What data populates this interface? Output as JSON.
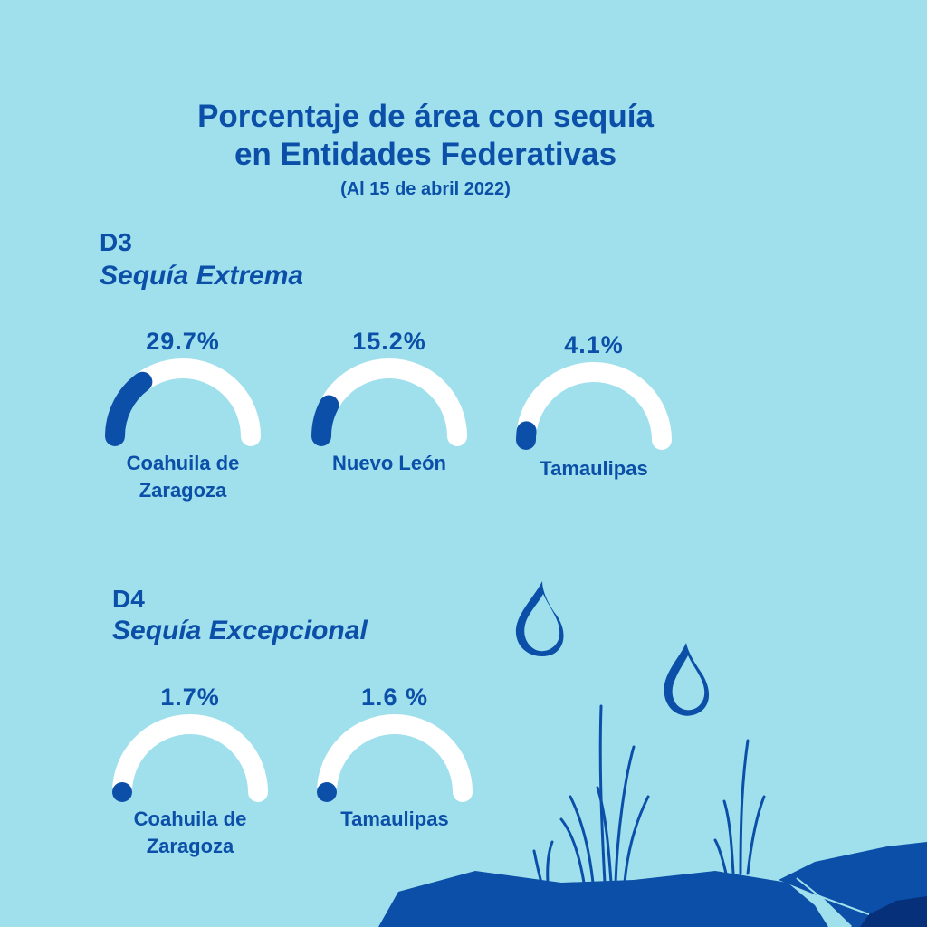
{
  "title_line1": "Porcentaje de área con sequía",
  "title_line2": "en Entidades Federativas",
  "subtitle": "(Al 15 de abril 2022)",
  "colors": {
    "background": "#9fe0ec",
    "accent": "#0b4fa8",
    "track": "#ffffff"
  },
  "chart_data": [
    {
      "type": "gauge",
      "section_code": "D3",
      "section_name": "Sequía Extrema",
      "range": [
        0,
        100
      ],
      "series": [
        {
          "label_line1": "Coahuila de",
          "label_line2": "Zaragoza",
          "value": 29.7,
          "value_text": "29.7%"
        },
        {
          "label_line1": "Nuevo León",
          "label_line2": "",
          "value": 15.2,
          "value_text": "15.2%"
        },
        {
          "label_line1": "Tamaulipas",
          "label_line2": "",
          "value": 4.1,
          "value_text": "4.1%"
        }
      ]
    },
    {
      "type": "gauge",
      "section_code": "D4",
      "section_name": "Sequía Excepcional",
      "range": [
        0,
        100
      ],
      "series": [
        {
          "label_line1": "Coahuila de",
          "label_line2": "Zaragoza",
          "value": 1.7,
          "value_text": "1.7%"
        },
        {
          "label_line1": "Tamaulipas",
          "label_line2": "",
          "value": 1.6,
          "value_text": "1.6 %"
        }
      ]
    }
  ],
  "decorations": {
    "drops": [
      "water-drop-icon",
      "water-drop-icon"
    ],
    "scene": "rocks-and-grass"
  }
}
